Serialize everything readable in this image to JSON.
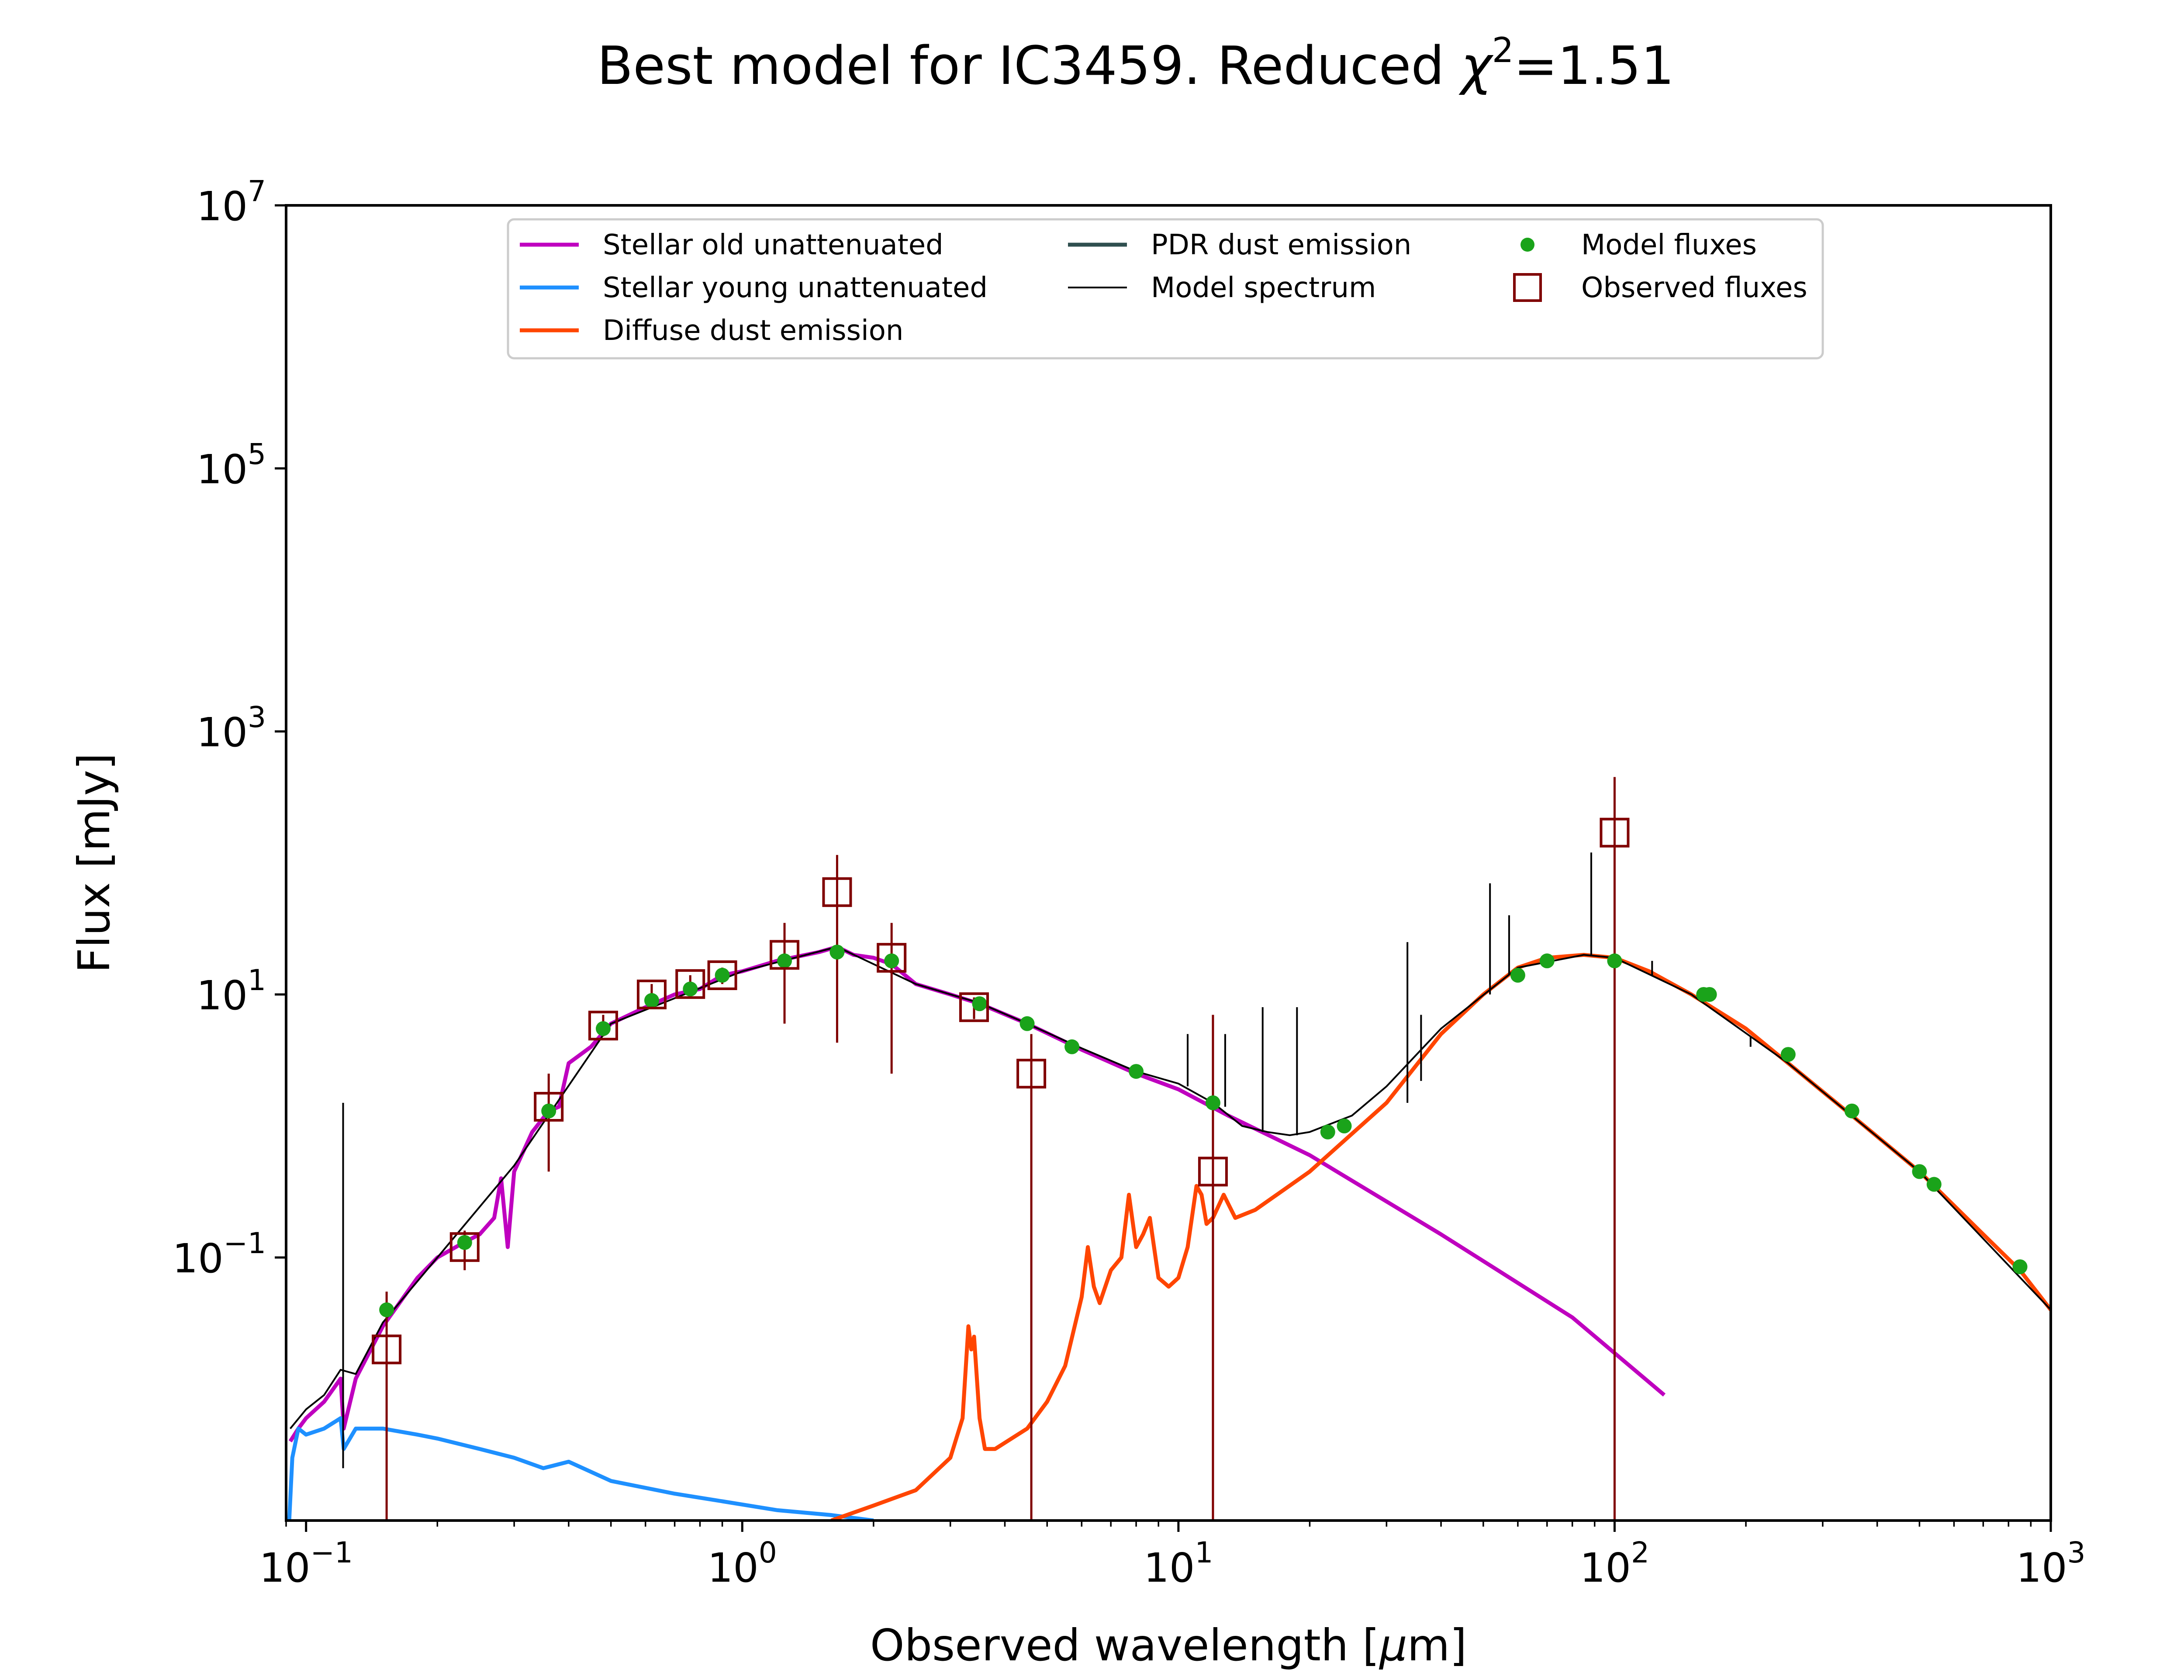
{
  "chart_data": {
    "type": "scatter",
    "title": "Best model for IC3459. Reduced χ²=1.51",
    "title_parts": {
      "prefix": "Best model for IC3459. Reduced ",
      "symbol": "χ",
      "superscript": "2",
      "suffix": "=1.51"
    },
    "xlabel": "Observed wavelength [μm]",
    "ylabel": "Flux [mJy]",
    "xscale": "log",
    "yscale": "log",
    "xlim": [
      0.09,
      1000
    ],
    "ylim": [
      0.001,
      10000000
    ],
    "grid": false,
    "legend_position": "top-center",
    "x_ticks": [
      {
        "value": 0.1,
        "base": "10",
        "exp": "−1"
      },
      {
        "value": 1,
        "base": "10",
        "exp": "0"
      },
      {
        "value": 10,
        "base": "10",
        "exp": "1"
      },
      {
        "value": 100,
        "base": "10",
        "exp": "2"
      },
      {
        "value": 1000,
        "base": "10",
        "exp": "3"
      }
    ],
    "y_ticks": [
      {
        "value": 0.1,
        "base": "10",
        "exp": "−1"
      },
      {
        "value": 10,
        "base": "10",
        "exp": "1"
      },
      {
        "value": 1000,
        "base": "10",
        "exp": "3"
      },
      {
        "value": 100000,
        "base": "10",
        "exp": "5"
      },
      {
        "value": 10000000,
        "base": "10",
        "exp": "7"
      }
    ],
    "legend": [
      {
        "label": "Stellar old unattenuated",
        "color": "#bf00bf",
        "kind": "line"
      },
      {
        "label": "Stellar young unattenuated",
        "color": "#1e90ff",
        "kind": "line"
      },
      {
        "label": "Diffuse dust emission",
        "color": "#ff4500",
        "kind": "line"
      },
      {
        "label": "PDR dust emission",
        "color": "#2f4f4f",
        "kind": "line"
      },
      {
        "label": "Model spectrum",
        "color": "#000000",
        "kind": "thinline"
      },
      {
        "label": "Model fluxes",
        "color": "#1aa31a",
        "kind": "dot"
      },
      {
        "label": "Observed fluxes",
        "color": "#800000",
        "kind": "square"
      }
    ],
    "series": [
      {
        "name": "Stellar old unattenuated",
        "kind": "line",
        "color": "#bf00bf",
        "points": [
          [
            0.092,
            0.004
          ],
          [
            0.096,
            0.005
          ],
          [
            0.1,
            0.006
          ],
          [
            0.11,
            0.008
          ],
          [
            0.12,
            0.012
          ],
          [
            0.122,
            0.005
          ],
          [
            0.13,
            0.012
          ],
          [
            0.15,
            0.03
          ],
          [
            0.18,
            0.07
          ],
          [
            0.2,
            0.1
          ],
          [
            0.23,
            0.13
          ],
          [
            0.25,
            0.15
          ],
          [
            0.27,
            0.2
          ],
          [
            0.28,
            0.4
          ],
          [
            0.29,
            0.12
          ],
          [
            0.3,
            0.45
          ],
          [
            0.33,
            0.9
          ],
          [
            0.36,
            1.3
          ],
          [
            0.38,
            1.4
          ],
          [
            0.4,
            3.0
          ],
          [
            0.45,
            4.0
          ],
          [
            0.5,
            6.0
          ],
          [
            0.6,
            8.0
          ],
          [
            0.7,
            10
          ],
          [
            0.8,
            11
          ],
          [
            0.9,
            14
          ],
          [
            1.0,
            15
          ],
          [
            1.2,
            18
          ],
          [
            1.5,
            21
          ],
          [
            1.65,
            23
          ],
          [
            1.8,
            20
          ],
          [
            2.0,
            19
          ],
          [
            2.2,
            17
          ],
          [
            2.5,
            12
          ],
          [
            3.0,
            10
          ],
          [
            3.5,
            8.5
          ],
          [
            4.5,
            6.0
          ],
          [
            6.0,
            3.8
          ],
          [
            8.0,
            2.5
          ],
          [
            10.0,
            1.9
          ],
          [
            13.0,
            1.2
          ],
          [
            20.0,
            0.6
          ],
          [
            40.0,
            0.15
          ],
          [
            80.0,
            0.035
          ],
          [
            130.0,
            0.009
          ]
        ]
      },
      {
        "name": "Stellar young unattenuated",
        "kind": "line",
        "color": "#1e90ff",
        "points": [
          [
            0.0915,
            0.001
          ],
          [
            0.093,
            0.003
          ],
          [
            0.096,
            0.005
          ],
          [
            0.1,
            0.0045
          ],
          [
            0.11,
            0.005
          ],
          [
            0.12,
            0.006
          ],
          [
            0.122,
            0.0035
          ],
          [
            0.13,
            0.005
          ],
          [
            0.15,
            0.005
          ],
          [
            0.18,
            0.0045
          ],
          [
            0.2,
            0.0042
          ],
          [
            0.25,
            0.0035
          ],
          [
            0.3,
            0.003
          ],
          [
            0.35,
            0.0025
          ],
          [
            0.4,
            0.0028
          ],
          [
            0.5,
            0.002
          ],
          [
            0.7,
            0.0016
          ],
          [
            0.9,
            0.0014
          ],
          [
            1.2,
            0.0012
          ],
          [
            1.6,
            0.0011
          ],
          [
            2.0,
            0.001
          ]
        ]
      },
      {
        "name": "Diffuse dust emission",
        "kind": "line",
        "color": "#ff4500",
        "points": [
          [
            1.6,
            0.001
          ],
          [
            2.0,
            0.0013
          ],
          [
            2.5,
            0.0017
          ],
          [
            3.0,
            0.003
          ],
          [
            3.2,
            0.006
          ],
          [
            3.3,
            0.03
          ],
          [
            3.35,
            0.02
          ],
          [
            3.4,
            0.025
          ],
          [
            3.5,
            0.006
          ],
          [
            3.6,
            0.0035
          ],
          [
            3.8,
            0.0035
          ],
          [
            4.5,
            0.005
          ],
          [
            5.0,
            0.008
          ],
          [
            5.5,
            0.015
          ],
          [
            6.0,
            0.05
          ],
          [
            6.2,
            0.12
          ],
          [
            6.4,
            0.06
          ],
          [
            6.6,
            0.045
          ],
          [
            7.0,
            0.08
          ],
          [
            7.4,
            0.1
          ],
          [
            7.7,
            0.3
          ],
          [
            8.0,
            0.12
          ],
          [
            8.3,
            0.15
          ],
          [
            8.6,
            0.2
          ],
          [
            9.0,
            0.07
          ],
          [
            9.5,
            0.06
          ],
          [
            10.0,
            0.07
          ],
          [
            10.5,
            0.12
          ],
          [
            11.0,
            0.35
          ],
          [
            11.3,
            0.3
          ],
          [
            11.6,
            0.18
          ],
          [
            12.0,
            0.2
          ],
          [
            12.7,
            0.3
          ],
          [
            13.5,
            0.2
          ],
          [
            15.0,
            0.23
          ],
          [
            20.0,
            0.45
          ],
          [
            30.0,
            1.5
          ],
          [
            40.0,
            5.0
          ],
          [
            50.0,
            10
          ],
          [
            60.0,
            16
          ],
          [
            70.0,
            19
          ],
          [
            85.0,
            20
          ],
          [
            100.0,
            19
          ],
          [
            120.0,
            15
          ],
          [
            150.0,
            10
          ],
          [
            200.0,
            5.5
          ],
          [
            250.0,
            3.0
          ],
          [
            350.0,
            1.2
          ],
          [
            500.0,
            0.45
          ],
          [
            700.0,
            0.15
          ],
          [
            850.0,
            0.08
          ],
          [
            1000.0,
            0.04
          ]
        ]
      },
      {
        "name": "Model spectrum",
        "kind": "thinline",
        "color": "#000000",
        "points": [
          [
            0.092,
            0.005
          ],
          [
            0.1,
            0.007
          ],
          [
            0.11,
            0.009
          ],
          [
            0.12,
            0.014
          ],
          [
            0.13,
            0.013
          ],
          [
            0.15,
            0.032
          ],
          [
            0.2,
            0.1
          ],
          [
            0.3,
            0.5
          ],
          [
            0.5,
            6.0
          ],
          [
            1.0,
            15
          ],
          [
            1.65,
            23
          ],
          [
            2.5,
            12
          ],
          [
            3.5,
            8.6
          ],
          [
            4.5,
            6.0
          ],
          [
            6.0,
            3.9
          ],
          [
            8.0,
            2.6
          ],
          [
            10.0,
            2.1
          ],
          [
            12.0,
            1.5
          ],
          [
            14.0,
            1.0
          ],
          [
            16.0,
            0.9
          ],
          [
            18.0,
            0.85
          ],
          [
            20.0,
            0.9
          ],
          [
            25.0,
            1.2
          ],
          [
            30.0,
            2.0
          ],
          [
            40.0,
            5.5
          ],
          [
            60.0,
            16
          ],
          [
            85.0,
            20
          ],
          [
            100.0,
            19
          ],
          [
            150.0,
            10
          ],
          [
            250.0,
            3.0
          ],
          [
            500.0,
            0.45
          ],
          [
            1000.0,
            0.04
          ]
        ],
        "spikes": [
          [
            0.1216,
            0.0025,
            1.5
          ],
          [
            10.5,
            2.0,
            5.0
          ],
          [
            12.8,
            1.4,
            5.0
          ],
          [
            15.6,
            0.9,
            8.0
          ],
          [
            18.7,
            0.85,
            8.0
          ],
          [
            33.5,
            1.5,
            25
          ],
          [
            36.0,
            2.2,
            7.0
          ],
          [
            51.8,
            10,
            70
          ],
          [
            57.3,
            14,
            40
          ],
          [
            88.4,
            20,
            120
          ],
          [
            121.9,
            14,
            18
          ],
          [
            205.0,
            4.0,
            4.8
          ]
        ]
      }
    ],
    "model_fluxes": {
      "color": "#1aa31a",
      "points": [
        [
          0.153,
          0.04
        ],
        [
          0.231,
          0.13
        ],
        [
          0.36,
          1.3
        ],
        [
          0.48,
          5.5
        ],
        [
          0.62,
          9.0
        ],
        [
          0.76,
          11
        ],
        [
          0.9,
          14
        ],
        [
          1.25,
          18
        ],
        [
          1.65,
          21
        ],
        [
          2.2,
          18
        ],
        [
          3.5,
          8.5
        ],
        [
          4.5,
          6.0
        ],
        [
          5.7,
          4.0
        ],
        [
          8.0,
          2.6
        ],
        [
          12.0,
          1.5
        ],
        [
          22.0,
          0.9
        ],
        [
          24.0,
          1.0
        ],
        [
          60.0,
          14
        ],
        [
          70.0,
          18
        ],
        [
          100.0,
          18
        ],
        [
          160.0,
          10
        ],
        [
          165.0,
          10
        ],
        [
          250.0,
          3.5
        ],
        [
          350.0,
          1.3
        ],
        [
          500.0,
          0.45
        ],
        [
          540.0,
          0.36
        ],
        [
          850.0,
          0.085
        ]
      ]
    },
    "observed_fluxes": {
      "color": "#800000",
      "points": [
        {
          "x": 0.153,
          "y": 0.02,
          "lo": 0.001,
          "hi": 0.055
        },
        {
          "x": 0.231,
          "y": 0.12,
          "lo": 0.08,
          "hi": 0.16
        },
        {
          "x": 0.36,
          "y": 1.4,
          "lo": 0.45,
          "hi": 2.5
        },
        {
          "x": 0.48,
          "y": 5.8,
          "lo": 4.8,
          "hi": 7.0
        },
        {
          "x": 0.62,
          "y": 10,
          "lo": 8.5,
          "hi": 12
        },
        {
          "x": 0.76,
          "y": 12,
          "lo": 10,
          "hi": 14
        },
        {
          "x": 0.9,
          "y": 14,
          "lo": 12,
          "hi": 16
        },
        {
          "x": 1.25,
          "y": 20,
          "lo": 6.0,
          "hi": 35
        },
        {
          "x": 1.65,
          "y": 60,
          "lo": 4.3,
          "hi": 115
        },
        {
          "x": 2.2,
          "y": 19,
          "lo": 2.5,
          "hi": 35
        },
        {
          "x": 3.4,
          "y": 8.0,
          "lo": 6.5,
          "hi": 9.5
        },
        {
          "x": 4.6,
          "y": 2.5,
          "lo": 0.001,
          "hi": 5.0
        },
        {
          "x": 12.0,
          "y": 0.45,
          "lo": 0.001,
          "hi": 7.0
        },
        {
          "x": 100.0,
          "y": 170,
          "lo": 0.001,
          "hi": 450
        }
      ]
    }
  }
}
